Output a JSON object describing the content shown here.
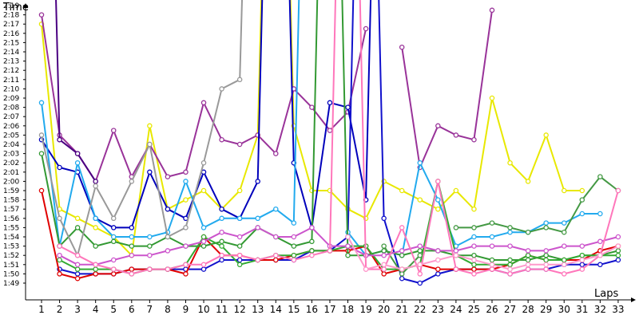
{
  "chart_data": {
    "type": "line",
    "xlabel": "Laps",
    "ylabel": "Time",
    "x": [
      1,
      2,
      3,
      4,
      5,
      6,
      7,
      8,
      9,
      10,
      11,
      12,
      13,
      14,
      15,
      16,
      17,
      18,
      19,
      20,
      21,
      22,
      23,
      24,
      25,
      26,
      27,
      28,
      29,
      30,
      31,
      32,
      33
    ],
    "y_ticks": [
      "1:49",
      "1:50",
      "1:51",
      "1:52",
      "1:53",
      "1:54",
      "1:55",
      "1:56",
      "1:57",
      "1:58",
      "1:59",
      "2:00",
      "2:01",
      "2:02",
      "2:03",
      "2:04",
      "2:05",
      "2:06",
      "2:07",
      "2:08",
      "2:09",
      "2:10",
      "2:11",
      "2:12",
      "2:13",
      "2:14",
      "2:15",
      "2:16",
      "2:17",
      "2:18",
      "2:19"
    ],
    "ylim_seconds": [
      108,
      140
    ],
    "grid": false,
    "legend": "none",
    "series": [
      {
        "color": "#e8e800",
        "values": [
          137,
          117,
          116,
          115,
          114,
          112,
          126,
          117,
          118,
          119,
          117,
          119,
          125,
          200,
          126,
          119,
          119,
          117,
          116,
          120,
          119,
          118,
          117,
          119,
          117,
          129,
          122,
          120,
          125,
          119,
          119,
          null,
          null
        ]
      },
      {
        "color": "#993399",
        "values": [
          138,
          125,
          123,
          120,
          125.5,
          120.5,
          124,
          120.5,
          121,
          128.5,
          124.5,
          124,
          125,
          123,
          130,
          128,
          125.5,
          127.5,
          136.5,
          null,
          134.5,
          121.5,
          126,
          125,
          124.5,
          138.5,
          null,
          null,
          null,
          null,
          null,
          null,
          null
        ]
      },
      {
        "color": "#4b0082",
        "values": [
          200,
          124.5,
          123,
          120,
          null,
          null,
          null,
          null,
          null,
          null,
          null,
          null,
          null,
          null,
          null,
          null,
          null,
          null,
          null,
          null,
          null,
          null,
          null,
          null,
          null,
          null,
          null,
          null,
          null,
          null,
          null,
          null,
          null
        ]
      },
      {
        "color": "#0000bb",
        "values": [
          124.5,
          121.5,
          121,
          116,
          115,
          115,
          121,
          117,
          116,
          121,
          117,
          116,
          120,
          200,
          122,
          115,
          128.5,
          128,
          118,
          200,
          null,
          null,
          null,
          null,
          null,
          null,
          null,
          null,
          null,
          null,
          null,
          null,
          null
        ]
      },
      {
        "color": "#1111cc",
        "values": [
          null,
          110.5,
          110,
          110,
          110,
          110.5,
          110.5,
          110.5,
          110.5,
          110.5,
          111.5,
          111.5,
          111.5,
          111.5,
          111.5,
          112.5,
          112.5,
          114,
          200,
          116,
          109.5,
          109,
          110,
          110.5,
          110.5,
          110.5,
          110,
          110.5,
          110.5,
          111,
          111,
          111,
          111.5
        ]
      },
      {
        "color": "#22aaee",
        "values": [
          128.5,
          113,
          122,
          116,
          114,
          114,
          114,
          114.5,
          120,
          115,
          116,
          116,
          116,
          117,
          115.5,
          200,
          null,
          114.5,
          112,
          112.5,
          112,
          122,
          118,
          113,
          114,
          114,
          114.5,
          114.5,
          115.5,
          115.5,
          116.5,
          116.5,
          null
        ]
      },
      {
        "color": "#e00000",
        "values": [
          119,
          110,
          109.5,
          110,
          110,
          110.5,
          110.5,
          110.5,
          110,
          114,
          112,
          112,
          111.5,
          111.5,
          112,
          112.5,
          112.5,
          112.5,
          113,
          110,
          110.5,
          111,
          110.5,
          110.5,
          110.5,
          110.5,
          111,
          112,
          111.5,
          111.5,
          111.5,
          112.5,
          113
        ]
      },
      {
        "color": "#339933",
        "values": [
          123,
          113,
          115,
          113,
          113.5,
          113,
          113,
          114,
          113,
          113,
          113.5,
          113,
          115,
          114,
          113,
          113.5,
          200,
          112,
          112,
          112.5,
          112,
          112.5,
          112.5,
          112,
          112,
          111.5,
          111.5,
          111.5,
          112,
          111.5,
          112,
          112,
          112.5
        ]
      },
      {
        "color": "#33aa33",
        "values": [
          null,
          111.5,
          110.5,
          110.5,
          110.5,
          110,
          110.5,
          110.5,
          111,
          114,
          113,
          111,
          111.5,
          112,
          112,
          112.5,
          112.5,
          113,
          113,
          110.5,
          110.5,
          111,
          120,
          112,
          111,
          111,
          111,
          112,
          111.5,
          111.5,
          112,
          112,
          112
        ]
      },
      {
        "color": "#449944",
        "values": [
          null,
          null,
          null,
          null,
          null,
          null,
          null,
          null,
          null,
          null,
          null,
          null,
          null,
          null,
          null,
          null,
          null,
          null,
          null,
          113,
          110,
          112,
          null,
          115,
          115,
          115.5,
          115,
          114.5,
          115,
          114.5,
          118,
          120.5,
          119
        ]
      },
      {
        "color": "#999999",
        "values": [
          125,
          116,
          112,
          119.5,
          116,
          120,
          124,
          114,
          115,
          122,
          130,
          131,
          200,
          null,
          null,
          null,
          null,
          null,
          null,
          null,
          null,
          null,
          null,
          null,
          null,
          null,
          null,
          null,
          null,
          null,
          null,
          null,
          null
        ]
      },
      {
        "color": "#cc55cc",
        "values": [
          null,
          112,
          111,
          111,
          111.5,
          112,
          112,
          112.5,
          113,
          113.5,
          114.5,
          114,
          115,
          114,
          114,
          115,
          113,
          113,
          112,
          112,
          112.5,
          113,
          112.5,
          112.5,
          113,
          113,
          113,
          112.5,
          112.5,
          113,
          113,
          113.5,
          114
        ]
      },
      {
        "color": "#ff77bb",
        "values": [
          null,
          113,
          112,
          111,
          110.5,
          110,
          110.5,
          110.5,
          111,
          111,
          112,
          112,
          111.5,
          112,
          111.5,
          112,
          112.5,
          200,
          110.5,
          110.5,
          115,
          110,
          120,
          110.5,
          110,
          110.5,
          110,
          110.5,
          110.5,
          110,
          110.5,
          112,
          119
        ]
      },
      {
        "color": "#ff99cc",
        "values": [
          null,
          null,
          null,
          null,
          null,
          null,
          null,
          null,
          null,
          null,
          null,
          null,
          null,
          null,
          null,
          null,
          null,
          114,
          110.5,
          111,
          110.5,
          111,
          111.5,
          112,
          111.5,
          111,
          110.5,
          111,
          111,
          111,
          111.5,
          112,
          113
        ]
      }
    ]
  }
}
